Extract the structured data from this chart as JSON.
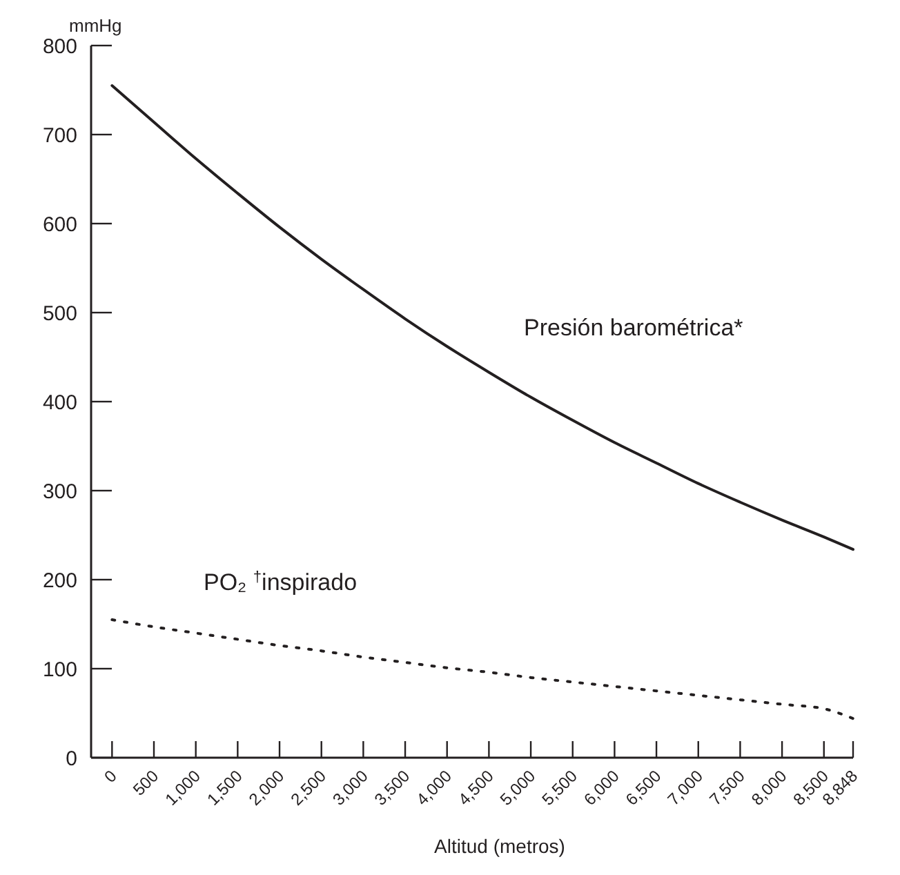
{
  "chart_data": {
    "type": "line",
    "ylabel": "mmHg",
    "xlabel": "Altitud (metros)",
    "x": [
      0,
      500,
      1000,
      1500,
      2000,
      2500,
      3000,
      3500,
      4000,
      4500,
      5000,
      5500,
      6000,
      6500,
      7000,
      7500,
      8000,
      8500,
      8848
    ],
    "xlim": [
      -250,
      8848
    ],
    "xticks": [
      0,
      {
        "value": 500,
        "label": "500"
      },
      {
        "value": 1000,
        "label": "1,000"
      },
      {
        "value": 1500,
        "label": "1,500"
      },
      {
        "value": 2000,
        "label": "2,000"
      },
      {
        "value": 2500,
        "label": "2,500"
      },
      {
        "value": 3000,
        "label": "3,000"
      },
      {
        "value": 3500,
        "label": "3,500"
      },
      {
        "value": 4000,
        "label": "4,000"
      },
      {
        "value": 4500,
        "label": "4,500"
      },
      {
        "value": 5000,
        "label": "5,000"
      },
      {
        "value": 5500,
        "label": "5,500"
      },
      {
        "value": 6000,
        "label": "6,000"
      },
      {
        "value": 6500,
        "label": "6,500"
      },
      {
        "value": 7000,
        "label": "7,000"
      },
      {
        "value": 7500,
        "label": "7,500"
      },
      {
        "value": 8000,
        "label": "8,000"
      },
      {
        "value": 8500,
        "label": "8,500"
      },
      {
        "value": 8848,
        "label": "8,848"
      }
    ],
    "ylim": [
      0,
      800
    ],
    "yticks": [
      0,
      100,
      200,
      300,
      400,
      500,
      600,
      700,
      800
    ],
    "grid": false,
    "marker": "none",
    "series": [
      {
        "name": "Presión barométrica*",
        "color": "#231f20",
        "line_style": "solid",
        "values": [
          755,
          714,
          673,
          634,
          596,
          560,
          526,
          493,
          462,
          433,
          405,
          379,
          354,
          331,
          308,
          287,
          267,
          248,
          234
        ]
      },
      {
        "name": "PO₂ $^{†}$inspirado",
        "color": "#231f20",
        "line_style": "dotted",
        "values": [
          155,
          147,
          140,
          133,
          126,
          120,
          113,
          107,
          101,
          96,
          90,
          85,
          80,
          75,
          70,
          65,
          60,
          55,
          44
        ]
      }
    ]
  }
}
